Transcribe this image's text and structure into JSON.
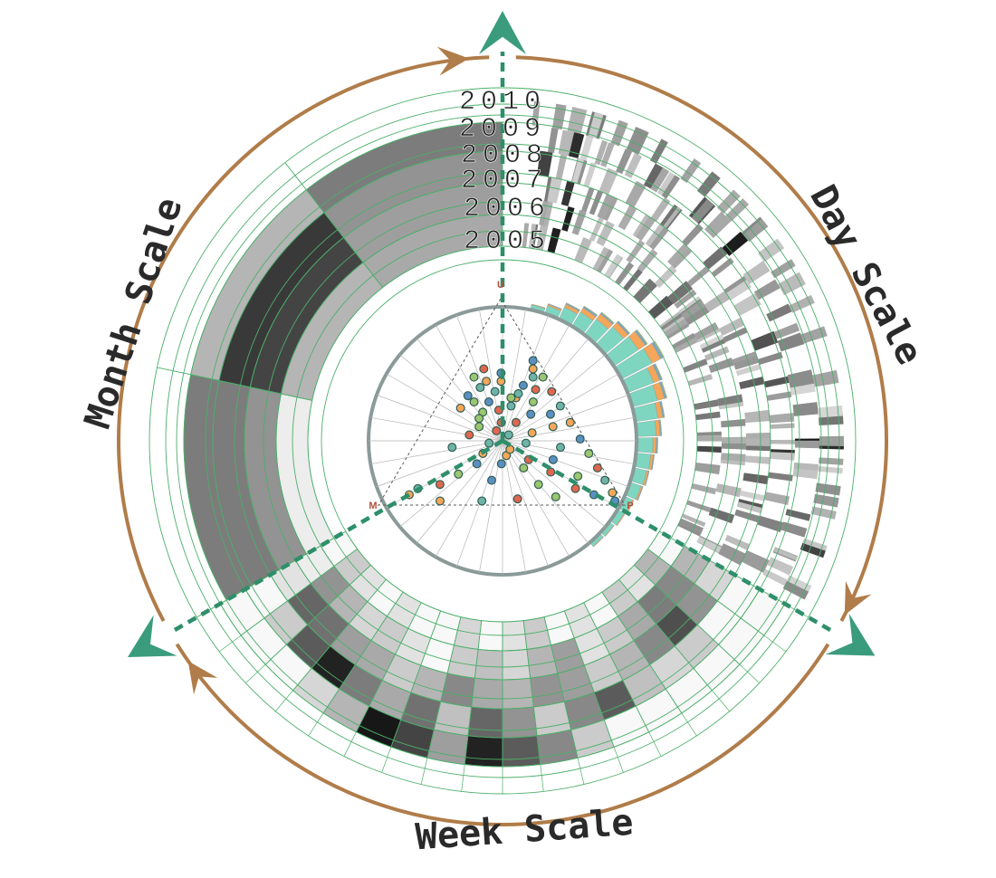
{
  "chart_data": {
    "type": "radial",
    "title": "",
    "years": [
      "2010",
      "2009",
      "2008",
      "2007",
      "2006",
      "2005"
    ],
    "scales": [
      {
        "name": "Day Scale",
        "span_deg": [
          0,
          120
        ]
      },
      {
        "name": "Week Scale",
        "span_deg": [
          120,
          240
        ]
      },
      {
        "name": "Month Scale",
        "span_deg": [
          240,
          360
        ]
      }
    ],
    "month_scale": {
      "rows": [
        "2009",
        "2008",
        "2007",
        "2006"
      ],
      "columns": 3,
      "intensity": [
        [
          0.55,
          0.3,
          0.55
        ],
        [
          0.55,
          0.85,
          0.45
        ],
        [
          0.45,
          0.8,
          0.4
        ],
        [
          0.05,
          0.3,
          0.35
        ]
      ]
    },
    "week_scale": {
      "rows": 5,
      "columns": 18,
      "intensity": [
        [
          0.0,
          0.2,
          0.1,
          0.0,
          0.1,
          0.0,
          0.0,
          0.15,
          0.0,
          0.1,
          0.2,
          0.0,
          0.1,
          0.0,
          0.2,
          0.1,
          0.3,
          0.0
        ],
        [
          0.05,
          0.45,
          0.3,
          0.15,
          0.2,
          0.1,
          0.0,
          0.2,
          0.25,
          0.15,
          0.3,
          0.4,
          0.1,
          0.2,
          0.35,
          0.55,
          0.5,
          0.3
        ],
        [
          0.1,
          0.65,
          0.6,
          0.4,
          0.35,
          0.2,
          0.3,
          0.5,
          0.35,
          0.3,
          0.45,
          0.4,
          0.2,
          0.3,
          0.5,
          0.75,
          0.45,
          0.15
        ],
        [
          0.0,
          0.2,
          0.7,
          0.95,
          0.55,
          0.35,
          0.6,
          0.25,
          0.65,
          0.45,
          0.2,
          0.5,
          0.7,
          0.25,
          0.15,
          0.2,
          0.0,
          0.0
        ],
        [
          0.0,
          0.0,
          0.0,
          0.15,
          0.3,
          1.0,
          0.8,
          0.4,
          0.95,
          0.7,
          0.5,
          0.2,
          0.0,
          0.0,
          0.0,
          0.0,
          0.0,
          0.0
        ]
      ]
    },
    "day_scale": {
      "rows": 6,
      "note_values": "stripe intensities 0-1 (darker = higher)",
      "stripes": [
        [
          8,
          0.55
        ],
        [
          11,
          0.3
        ],
        [
          15,
          0.7
        ],
        [
          22,
          0.35
        ],
        [
          27,
          0.5
        ],
        [
          33,
          0.25
        ],
        [
          38,
          0.6
        ],
        [
          44,
          0.4
        ],
        [
          50,
          0.75
        ],
        [
          55,
          0.3
        ],
        [
          61,
          0.45
        ],
        [
          66,
          0.55
        ],
        [
          72,
          0.35
        ],
        [
          78,
          0.65
        ],
        [
          84,
          0.4
        ],
        [
          90,
          0.8
        ],
        [
          96,
          0.45
        ],
        [
          102,
          0.55
        ],
        [
          108,
          0.7
        ],
        [
          114,
          0.4
        ]
      ]
    },
    "ternary_plot": {
      "corners": [
        "U",
        "M",
        "P"
      ],
      "series_colors": [
        "#6fb3a7",
        "#f4a65a",
        "#5b8fc2",
        "#9cc66f",
        "#e0664f"
      ],
      "points": [
        [
          0.55,
          0.25,
          0.2
        ],
        [
          0.6,
          0.2,
          0.2
        ],
        [
          0.5,
          0.3,
          0.2
        ],
        [
          0.45,
          0.35,
          0.2
        ],
        [
          0.4,
          0.3,
          0.3
        ],
        [
          0.48,
          0.22,
          0.3
        ],
        [
          0.52,
          0.18,
          0.3
        ],
        [
          0.58,
          0.12,
          0.3
        ],
        [
          0.42,
          0.38,
          0.2
        ],
        [
          0.36,
          0.34,
          0.3
        ],
        [
          0.3,
          0.4,
          0.3
        ],
        [
          0.25,
          0.45,
          0.3
        ],
        [
          0.2,
          0.5,
          0.3
        ],
        [
          0.15,
          0.6,
          0.25
        ],
        [
          0.1,
          0.7,
          0.2
        ],
        [
          0.08,
          0.8,
          0.12
        ],
        [
          0.05,
          0.85,
          0.1
        ],
        [
          0.2,
          0.4,
          0.4
        ],
        [
          0.18,
          0.32,
          0.5
        ],
        [
          0.22,
          0.28,
          0.5
        ],
        [
          0.3,
          0.25,
          0.45
        ],
        [
          0.35,
          0.2,
          0.45
        ],
        [
          0.44,
          0.16,
          0.4
        ],
        [
          0.5,
          0.12,
          0.38
        ],
        [
          0.56,
          0.08,
          0.36
        ],
        [
          0.62,
          0.06,
          0.32
        ],
        [
          0.66,
          0.04,
          0.3
        ],
        [
          0.7,
          0.02,
          0.28
        ],
        [
          0.62,
          0.02,
          0.36
        ],
        [
          0.55,
          0.02,
          0.43
        ],
        [
          0.48,
          0.02,
          0.5
        ],
        [
          0.4,
          0.02,
          0.58
        ],
        [
          0.32,
          0.02,
          0.66
        ],
        [
          0.25,
          0.02,
          0.73
        ],
        [
          0.18,
          0.02,
          0.8
        ],
        [
          0.12,
          0.02,
          0.86
        ],
        [
          0.06,
          0.02,
          0.92
        ],
        [
          0.02,
          0.03,
          0.95
        ],
        [
          0.04,
          0.26,
          0.7
        ],
        [
          0.03,
          0.42,
          0.55
        ],
        [
          0.02,
          0.57,
          0.41
        ],
        [
          0.02,
          0.74,
          0.24
        ],
        [
          0.05,
          0.1,
          0.85
        ],
        [
          0.38,
          0.4,
          0.22
        ],
        [
          0.46,
          0.28,
          0.26
        ],
        [
          0.54,
          0.16,
          0.3
        ],
        [
          0.6,
          0.26,
          0.14
        ],
        [
          0.64,
          0.18,
          0.18
        ],
        [
          0.5,
          0.36,
          0.14
        ],
        [
          0.34,
          0.46,
          0.2
        ],
        [
          0.28,
          0.56,
          0.16
        ],
        [
          0.24,
          0.36,
          0.4
        ],
        [
          0.12,
          0.48,
          0.4
        ],
        [
          0.1,
          0.3,
          0.6
        ],
        [
          0.16,
          0.22,
          0.62
        ],
        [
          0.28,
          0.12,
          0.6
        ],
        [
          0.38,
          0.1,
          0.52
        ],
        [
          0.44,
          0.08,
          0.48
        ],
        [
          0.52,
          0.2,
          0.28
        ],
        [
          0.4,
          0.24,
          0.36
        ],
        [
          0.57,
          0.3,
          0.13
        ],
        [
          0.47,
          0.43,
          0.1
        ],
        [
          0.53,
          0.37,
          0.1
        ],
        [
          0.62,
          0.3,
          0.08
        ],
        [
          0.66,
          0.24,
          0.1
        ],
        [
          0.34,
          0.3,
          0.36
        ],
        [
          0.27,
          0.33,
          0.4
        ],
        [
          0.22,
          0.18,
          0.6
        ],
        [
          0.14,
          0.12,
          0.74
        ],
        [
          0.08,
          0.16,
          0.76
        ]
      ]
    },
    "radial_histogram": {
      "series": [
        "teal",
        "orange",
        "blue",
        "green"
      ],
      "bins": [
        [
          0.1,
          0.02,
          0.01,
          0.01
        ],
        [
          0.2,
          0.05,
          0.02,
          0.01
        ],
        [
          0.35,
          0.1,
          0.03,
          0.02
        ],
        [
          0.45,
          0.15,
          0.05,
          0.02
        ],
        [
          0.55,
          0.2,
          0.04,
          0.03
        ],
        [
          0.7,
          0.18,
          0.05,
          0.02
        ],
        [
          0.85,
          0.25,
          0.06,
          0.03
        ],
        [
          1.0,
          0.3,
          0.08,
          0.04
        ],
        [
          0.8,
          0.2,
          0.06,
          0.03
        ],
        [
          0.75,
          0.22,
          0.05,
          0.03
        ],
        [
          0.65,
          0.15,
          0.04,
          0.02
        ],
        [
          0.55,
          0.12,
          0.03,
          0.02
        ],
        [
          0.45,
          0.1,
          0.03,
          0.02
        ],
        [
          0.4,
          0.08,
          0.03,
          0.01
        ],
        [
          0.35,
          0.06,
          0.02,
          0.01
        ],
        [
          0.3,
          0.05,
          0.02,
          0.01
        ],
        [
          0.22,
          0.04,
          0.01,
          0.01
        ],
        [
          0.18,
          0.03,
          0.01,
          0.01
        ],
        [
          0.12,
          0.02,
          0.01,
          0.01
        ],
        [
          0.1,
          0.02,
          0.01,
          0.0
        ]
      ]
    },
    "colors": {
      "arrow_brown": "#b07c49",
      "arrow_green": "#3a9c7c",
      "grid_green": "#4caf6a",
      "dashed_green": "#2e8f6a",
      "ternary_grid": "#9aa3a3",
      "ternary_rim": "#8a9a98"
    }
  }
}
